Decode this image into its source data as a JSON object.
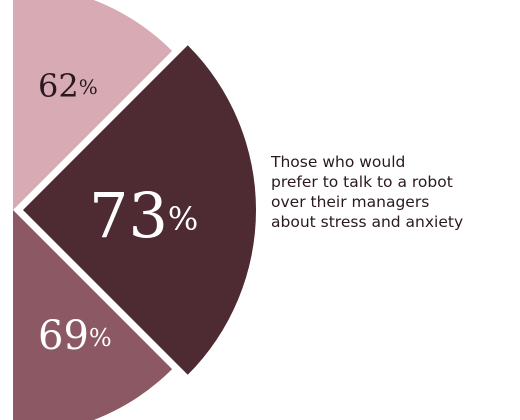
{
  "chart_data": {
    "type": "pie",
    "title": "",
    "categories": [
      "",
      "",
      ""
    ],
    "values": [
      62,
      73,
      69
    ],
    "unit": "%",
    "colors": [
      "#d7aab4",
      "#4e2a33",
      "#8c5864"
    ],
    "legend": "none"
  },
  "caption": {
    "lines": [
      "Those who would",
      "prefer to talk to a robot",
      "over their managers",
      "about stress and anxiety"
    ]
  }
}
